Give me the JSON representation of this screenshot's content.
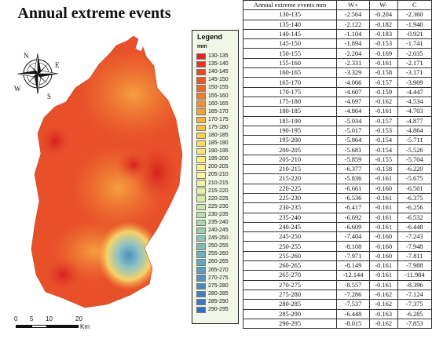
{
  "map": {
    "title": "Annual extreme events",
    "colors": {
      "outer": "#e8502a",
      "hot": "#d6201e",
      "warm": "#f07b31",
      "mild": "#f5a040",
      "cool": "#8dc3c5",
      "coolest": "#4b8ec2"
    }
  },
  "compass": {
    "n": "N",
    "e": "E",
    "s": "S",
    "w": "W"
  },
  "scale_bar": {
    "ticks": [
      "0",
      "5",
      "10",
      "20"
    ],
    "unit": "Km"
  },
  "legend": {
    "title": "Legend",
    "unit": "mm",
    "items": [
      {
        "label": "130-135",
        "color": "#e8231f"
      },
      {
        "label": "135-140",
        "color": "#ea3322"
      },
      {
        "label": "140-145",
        "color": "#ec4526"
      },
      {
        "label": "145-150",
        "color": "#ee5729"
      },
      {
        "label": "150-155",
        "color": "#f0692c"
      },
      {
        "label": "155-160",
        "color": "#f27b30"
      },
      {
        "label": "160-165",
        "color": "#f48d34"
      },
      {
        "label": "165-170",
        "color": "#f59f3a"
      },
      {
        "label": "170-175",
        "color": "#f7b041"
      },
      {
        "label": "175-180",
        "color": "#f8c04a"
      },
      {
        "label": "180-185",
        "color": "#f9cf55"
      },
      {
        "label": "185-190",
        "color": "#fadb62"
      },
      {
        "label": "190-195",
        "color": "#fbe570"
      },
      {
        "label": "195-200",
        "color": "#fcec7f"
      },
      {
        "label": "200-205",
        "color": "#fcf18e"
      },
      {
        "label": "205-210",
        "color": "#f8f49a"
      },
      {
        "label": "210-215",
        "color": "#eff4a2"
      },
      {
        "label": "215-220",
        "color": "#e3f1a8"
      },
      {
        "label": "220-225",
        "color": "#d5ecab"
      },
      {
        "label": "225-230",
        "color": "#c6e6ad"
      },
      {
        "label": "230-235",
        "color": "#b7deae"
      },
      {
        "label": "235-240",
        "color": "#a8d6b0"
      },
      {
        "label": "240-245",
        "color": "#99cdb2"
      },
      {
        "label": "245-250",
        "color": "#8bc4b5"
      },
      {
        "label": "250-255",
        "color": "#7ebbb8"
      },
      {
        "label": "255-260",
        "color": "#72b1bb"
      },
      {
        "label": "260-265",
        "color": "#67a7bd"
      },
      {
        "label": "265-270",
        "color": "#5d9dbf"
      },
      {
        "label": "270-275",
        "color": "#5493c1"
      },
      {
        "label": "275-280",
        "color": "#4b89c3"
      },
      {
        "label": "280-285",
        "color": "#437fc4"
      },
      {
        "label": "285-290",
        "color": "#3b75c5"
      },
      {
        "label": "290-295",
        "color": "#346bc6"
      }
    ]
  },
  "table": {
    "headers": [
      "Annual extreme events mm",
      "W+",
      "W-",
      "C"
    ],
    "rows": [
      [
        "130-135",
        "-2.564",
        "-0.204",
        "-2.360"
      ],
      [
        "135-140",
        "-2.122",
        "-0.182",
        "-1.940"
      ],
      [
        "140-145",
        "-1.104",
        "-0.183",
        "-0.921"
      ],
      [
        "145-150",
        "-1.894",
        "-0.153",
        "-1.741"
      ],
      [
        "150-155",
        "-2.204",
        "-0.169",
        "-2.035"
      ],
      [
        "155-160",
        "-2.331",
        "-0.161",
        "-2.171"
      ],
      [
        "160-165",
        "-3.329",
        "-0.158",
        "-3.171"
      ],
      [
        "165-170",
        "-4.066",
        "-0.157",
        "-3.909"
      ],
      [
        "170-175",
        "-4.607",
        "-0.159",
        "-4.447"
      ],
      [
        "175-180",
        "-4.697",
        "-0.162",
        "-4.534"
      ],
      [
        "180-185",
        "-4.864",
        "-0.161",
        "-4.703"
      ],
      [
        "185-190",
        "-5.034",
        "-0.157",
        "-4.877"
      ],
      [
        "190-195",
        "-5.017",
        "-0.153",
        "-4.864"
      ],
      [
        "195-200",
        "-5.864",
        "-0.154",
        "-5.711"
      ],
      [
        "200-205",
        "-5.681",
        "-0.154",
        "-5.526"
      ],
      [
        "205-210",
        "-5.859",
        "-0.155",
        "-5.704"
      ],
      [
        "210-215",
        "-6.377",
        "-0.158",
        "-6.220"
      ],
      [
        "215-220",
        "-5.836",
        "-0.161",
        "-5.675"
      ],
      [
        "220-225",
        "-6.661",
        "-0.160",
        "-6.501"
      ],
      [
        "225-230",
        "-6.536",
        "-0.161",
        "-6.375"
      ],
      [
        "230-235",
        "-6.417",
        "-0.161",
        "-6.256"
      ],
      [
        "235-240",
        "-6.692",
        "-0.161",
        "-6.532"
      ],
      [
        "240-245",
        "-6.609",
        "-0.161",
        "-6.448"
      ],
      [
        "245-250",
        "-7.404",
        "-0.160",
        "-7.243"
      ],
      [
        "250-255",
        "-8.108",
        "-0.160",
        "-7.948"
      ],
      [
        "255-260",
        "-7.971",
        "-0.160",
        "-7.811"
      ],
      [
        "260-265",
        "-8.149",
        "-0.161",
        "-7.988"
      ],
      [
        "265-270",
        "-12.144",
        "-0.161",
        "-11.984"
      ],
      [
        "270-275",
        "-8.557",
        "-0.161",
        "-8.396"
      ],
      [
        "275-280",
        "-7.286",
        "-0.162",
        "-7.124"
      ],
      [
        "280-285",
        "-7.537",
        "-0.162",
        "-7.375"
      ],
      [
        "285-290",
        "-6.448",
        "-0.163",
        "-6.285"
      ],
      [
        "290-295",
        "-8.015",
        "-0.162",
        "-7.853"
      ]
    ]
  }
}
